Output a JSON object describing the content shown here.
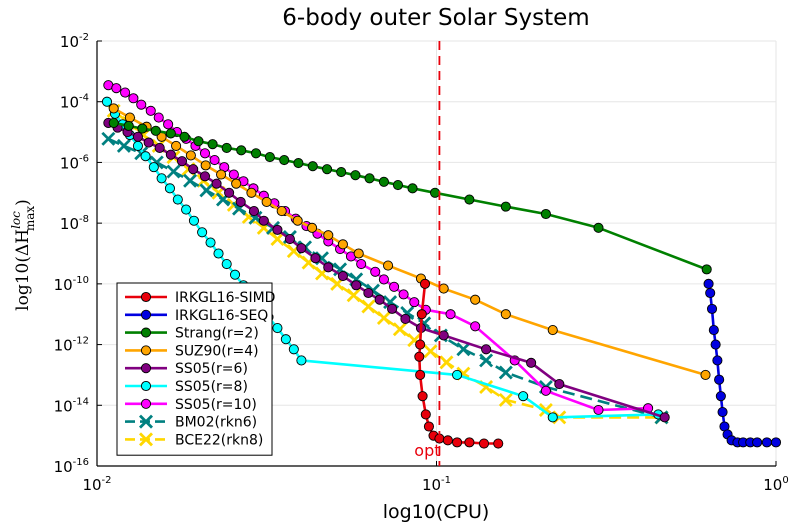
{
  "chart_data": {
    "type": "line",
    "title": "6-body outer Solar System",
    "xlabel": "log10(CPU)",
    "ylabel": "log10(ΔH_max^loc)",
    "xscale": "log",
    "yscale": "log",
    "xlim": [
      0.01,
      1
    ],
    "ylim": [
      1e-16,
      0.01
    ],
    "grid": true,
    "legend_position": "bottom-left",
    "x_ticks": [
      {
        "base": "10",
        "exp": "-2",
        "value": 0.01
      },
      {
        "base": "10",
        "exp": "-1",
        "value": 0.1
      },
      {
        "base": "10",
        "exp": "0",
        "value": 1
      }
    ],
    "y_ticks": [
      {
        "base": "10",
        "exp": "-16",
        "value": 1e-16
      },
      {
        "base": "10",
        "exp": "-14",
        "value": 1e-14
      },
      {
        "base": "10",
        "exp": "-12",
        "value": 1e-12
      },
      {
        "base": "10",
        "exp": "-10",
        "value": 1e-10
      },
      {
        "base": "10",
        "exp": "-8",
        "value": 1e-08
      },
      {
        "base": "10",
        "exp": "-6",
        "value": 1e-06
      },
      {
        "base": "10",
        "exp": "-4",
        "value": 0.0001
      },
      {
        "base": "10",
        "exp": "-2",
        "value": 0.01
      }
    ],
    "reference_line": {
      "x": 0.102,
      "label": "opt",
      "color": "#e8000b",
      "style": "dashed"
    },
    "series": [
      {
        "name": "IRKGL16-SIMD",
        "color": "#e8000b",
        "marker": "circle",
        "dashed": false,
        "points": [
          [
            0.0925,
            1e-10
          ],
          [
            0.0905,
            1e-11
          ],
          [
            0.0895,
            1e-12
          ],
          [
            0.089,
            4e-13
          ],
          [
            0.0895,
            1e-13
          ],
          [
            0.091,
            2e-14
          ],
          [
            0.093,
            5e-15
          ],
          [
            0.095,
            2e-15
          ],
          [
            0.098,
            1e-15
          ],
          [
            0.102,
            8e-16
          ],
          [
            0.108,
            7e-16
          ],
          [
            0.115,
            6e-16
          ],
          [
            0.125,
            6e-16
          ],
          [
            0.138,
            5.5e-16
          ],
          [
            0.152,
            5.5e-16
          ]
        ]
      },
      {
        "name": "IRKGL16-SEQ",
        "color": "#0000e0",
        "marker": "circle",
        "dashed": false,
        "points": [
          [
            0.633,
            1e-10
          ],
          [
            0.64,
            5e-11
          ],
          [
            0.648,
            1.5e-11
          ],
          [
            0.656,
            3e-12
          ],
          [
            0.664,
            1e-12
          ],
          [
            0.672,
            3e-13
          ],
          [
            0.68,
            7e-14
          ],
          [
            0.688,
            2e-14
          ],
          [
            0.696,
            6e-15
          ],
          [
            0.705,
            2e-15
          ],
          [
            0.72,
            1.1e-15
          ],
          [
            0.74,
            7e-16
          ],
          [
            0.77,
            6e-16
          ],
          [
            0.8,
            6e-16
          ],
          [
            0.84,
            6e-16
          ],
          [
            0.88,
            6e-16
          ],
          [
            0.94,
            6e-16
          ],
          [
            1.0,
            6e-16
          ]
        ]
      },
      {
        "name": "Strang(r=2)",
        "color": "#008000",
        "marker": "circle",
        "dashed": false,
        "points": [
          [
            0.0112,
            2e-05
          ],
          [
            0.0124,
            1.6e-05
          ],
          [
            0.0136,
            1.3e-05
          ],
          [
            0.0149,
            1.1e-05
          ],
          [
            0.0165,
            9e-06
          ],
          [
            0.0181,
            7e-06
          ],
          [
            0.0199,
            5e-06
          ],
          [
            0.0219,
            4e-06
          ],
          [
            0.0241,
            3e-06
          ],
          [
            0.0266,
            2.5e-06
          ],
          [
            0.0294,
            2e-06
          ],
          [
            0.0323,
            1.5e-06
          ],
          [
            0.0356,
            1.2e-06
          ],
          [
            0.0392,
            9.5e-07
          ],
          [
            0.0432,
            7.5e-07
          ],
          [
            0.0476,
            6e-07
          ],
          [
            0.0524,
            4.8e-07
          ],
          [
            0.0577,
            3.8e-07
          ],
          [
            0.0635,
            3e-07
          ],
          [
            0.07,
            2.3e-07
          ],
          [
            0.077,
            1.8e-07
          ],
          [
            0.085,
            1.4e-07
          ],
          [
            0.099,
            1e-07
          ],
          [
            0.125,
            6e-08
          ],
          [
            0.16,
            3.5e-08
          ],
          [
            0.21,
            2e-08
          ],
          [
            0.3,
            7e-09
          ],
          [
            0.625,
            3e-10
          ]
        ]
      },
      {
        "name": "SUZ90(r=4)",
        "color": "#ffa500",
        "marker": "circle",
        "dashed": false,
        "points": [
          [
            0.0112,
            6e-05
          ],
          [
            0.0125,
            3e-05
          ],
          [
            0.014,
            1.5e-05
          ],
          [
            0.0155,
            7e-06
          ],
          [
            0.0171,
            3.5e-06
          ],
          [
            0.0189,
            1.7e-06
          ],
          [
            0.0209,
            8e-07
          ],
          [
            0.0232,
            4e-07
          ],
          [
            0.0257,
            2e-07
          ],
          [
            0.0285,
            1e-07
          ],
          [
            0.0316,
            5e-08
          ],
          [
            0.035,
            2.5e-08
          ],
          [
            0.039,
            1.2e-08
          ],
          [
            0.043,
            7e-09
          ],
          [
            0.048,
            4e-09
          ],
          [
            0.053,
            2e-09
          ],
          [
            0.059,
            1e-09
          ],
          [
            0.072,
            4e-10
          ],
          [
            0.09,
            1.5e-10
          ],
          [
            0.105,
            7e-11
          ],
          [
            0.13,
            3e-11
          ],
          [
            0.16,
            1e-11
          ],
          [
            0.22,
            3e-12
          ],
          [
            0.62,
            1e-13
          ]
        ]
      },
      {
        "name": "SS05(r=6)",
        "color": "#800080",
        "marker": "circle",
        "dashed": false,
        "points": [
          [
            0.0108,
            2e-05
          ],
          [
            0.0115,
            1.4e-05
          ],
          [
            0.0123,
            1e-05
          ],
          [
            0.0132,
            7e-06
          ],
          [
            0.0142,
            4.5e-06
          ],
          [
            0.0153,
            3e-06
          ],
          [
            0.0165,
            1.8e-06
          ],
          [
            0.0178,
            1.1e-06
          ],
          [
            0.0192,
            6e-07
          ],
          [
            0.0208,
            3.5e-07
          ],
          [
            0.0225,
            2e-07
          ],
          [
            0.0245,
            1e-07
          ],
          [
            0.0265,
            5e-08
          ],
          [
            0.029,
            2.5e-08
          ],
          [
            0.031,
            1.2e-08
          ],
          [
            0.034,
            6e-09
          ],
          [
            0.037,
            3e-09
          ],
          [
            0.04,
            1.5e-09
          ],
          [
            0.044,
            7e-10
          ],
          [
            0.048,
            3.5e-10
          ],
          [
            0.053,
            1.8e-10
          ],
          [
            0.058,
            9e-11
          ],
          [
            0.063,
            5e-11
          ],
          [
            0.068,
            3e-11
          ],
          [
            0.074,
            1.5e-11
          ],
          [
            0.081,
            7e-12
          ],
          [
            0.09,
            3.5e-12
          ],
          [
            0.105,
            2e-12
          ],
          [
            0.14,
            7e-13
          ],
          [
            0.19,
            2.5e-13
          ],
          [
            0.23,
            5e-14
          ],
          [
            0.47,
            4e-15
          ]
        ]
      },
      {
        "name": "SS05(r=8)",
        "color": "#00ffff",
        "marker": "circle",
        "dashed": false,
        "points": [
          [
            0.0107,
            0.0001
          ],
          [
            0.0113,
            4e-05
          ],
          [
            0.0119,
            1.8e-05
          ],
          [
            0.0125,
            8e-06
          ],
          [
            0.0132,
            3.5e-06
          ],
          [
            0.0139,
            1.6e-06
          ],
          [
            0.0147,
            7e-07
          ],
          [
            0.0155,
            3e-07
          ],
          [
            0.0164,
            1.4e-07
          ],
          [
            0.0173,
            6e-08
          ],
          [
            0.0183,
            2.8e-08
          ],
          [
            0.0193,
            1.2e-08
          ],
          [
            0.0204,
            5e-09
          ],
          [
            0.0216,
            2.3e-09
          ],
          [
            0.0228,
            1e-09
          ],
          [
            0.0241,
            4.5e-10
          ],
          [
            0.0255,
            2e-10
          ],
          [
            0.027,
            9e-11
          ],
          [
            0.0286,
            4e-11
          ],
          [
            0.0303,
            1.8e-11
          ],
          [
            0.032,
            8e-12
          ],
          [
            0.034,
            3.5e-12
          ],
          [
            0.036,
            1.5e-12
          ],
          [
            0.038,
            7e-13
          ],
          [
            0.04,
            3e-13
          ],
          [
            0.115,
            1e-13
          ],
          [
            0.18,
            2e-14
          ],
          [
            0.22,
            4e-15
          ],
          [
            0.45,
            5e-15
          ]
        ]
      },
      {
        "name": "SS05(r=10)",
        "color": "#ff00ff",
        "marker": "circle",
        "dashed": false,
        "points": [
          [
            0.0108,
            0.00035
          ],
          [
            0.0114,
            0.00028
          ],
          [
            0.0121,
            0.0002
          ],
          [
            0.0128,
            0.00013
          ],
          [
            0.0135,
            8e-05
          ],
          [
            0.0144,
            5e-05
          ],
          [
            0.0152,
            3e-05
          ],
          [
            0.0162,
            1.8e-05
          ],
          [
            0.0172,
            1e-05
          ],
          [
            0.0183,
            6e-06
          ],
          [
            0.0195,
            3.5e-06
          ],
          [
            0.0208,
            2e-06
          ],
          [
            0.0222,
            1.2e-06
          ],
          [
            0.0237,
            7e-07
          ],
          [
            0.0253,
            4e-07
          ],
          [
            0.027,
            2.4e-07
          ],
          [
            0.0289,
            1.4e-07
          ],
          [
            0.031,
            8e-08
          ],
          [
            0.0333,
            4.5e-08
          ],
          [
            0.0358,
            2.5e-08
          ],
          [
            0.0385,
            1.4e-08
          ],
          [
            0.0414,
            8e-09
          ],
          [
            0.0446,
            4.5e-09
          ],
          [
            0.048,
            2.5e-09
          ],
          [
            0.052,
            1.4e-09
          ],
          [
            0.056,
            8e-10
          ],
          [
            0.06,
            4.5e-10
          ],
          [
            0.066,
            2.5e-10
          ],
          [
            0.07,
            1.4e-10
          ],
          [
            0.075,
            8e-11
          ],
          [
            0.08,
            4.5e-11
          ],
          [
            0.086,
            2.5e-11
          ],
          [
            0.093,
            1.4e-11
          ],
          [
            0.11,
            1e-11
          ],
          [
            0.13,
            4e-12
          ],
          [
            0.17,
            3e-13
          ],
          [
            0.21,
            3e-14
          ],
          [
            0.3,
            7e-15
          ],
          [
            0.42,
            8e-15
          ]
        ]
      },
      {
        "name": "BM02(rkn6)",
        "color": "#008080",
        "marker": "x",
        "dashed": true,
        "points": [
          [
            0.0108,
            6e-06
          ],
          [
            0.012,
            3.5e-06
          ],
          [
            0.0135,
            2e-06
          ],
          [
            0.015,
            1e-06
          ],
          [
            0.0168,
            5e-07
          ],
          [
            0.0188,
            2.5e-07
          ],
          [
            0.021,
            1.2e-07
          ],
          [
            0.0235,
            6e-08
          ],
          [
            0.0262,
            3e-08
          ],
          [
            0.0293,
            1.5e-08
          ],
          [
            0.033,
            7e-09
          ],
          [
            0.037,
            3.5e-09
          ],
          [
            0.041,
            1.6e-09
          ],
          [
            0.046,
            7e-10
          ],
          [
            0.052,
            3e-10
          ],
          [
            0.058,
            1.4e-10
          ],
          [
            0.065,
            6e-11
          ],
          [
            0.073,
            2.5e-11
          ],
          [
            0.082,
            1.1e-11
          ],
          [
            0.092,
            5e-12
          ],
          [
            0.103,
            2e-12
          ],
          [
            0.12,
            7e-13
          ],
          [
            0.14,
            3e-13
          ],
          [
            0.16,
            1.2e-13
          ],
          [
            0.21,
            4e-14
          ],
          [
            0.46,
            4e-15
          ]
        ]
      },
      {
        "name": "BCE22(rkn8)",
        "color": "#ffd700",
        "marker": "x",
        "dashed": true,
        "points": [
          [
            0.0112,
            5e-05
          ],
          [
            0.0124,
            2e-05
          ],
          [
            0.0137,
            8e-06
          ],
          [
            0.0152,
            3.5e-06
          ],
          [
            0.0168,
            1.5e-06
          ],
          [
            0.0186,
            6e-07
          ],
          [
            0.0206,
            2.5e-07
          ],
          [
            0.0228,
            1e-07
          ],
          [
            0.0253,
            4e-08
          ],
          [
            0.028,
            1.6e-08
          ],
          [
            0.031,
            7e-09
          ],
          [
            0.034,
            3e-09
          ],
          [
            0.038,
            1.2e-09
          ],
          [
            0.042,
            5e-10
          ],
          [
            0.046,
            2.2e-10
          ],
          [
            0.051,
            1e-10
          ],
          [
            0.057,
            4.2e-11
          ],
          [
            0.063,
            1.8e-11
          ],
          [
            0.07,
            7.5e-12
          ],
          [
            0.078,
            3.2e-12
          ],
          [
            0.086,
            1.4e-12
          ],
          [
            0.096,
            6e-13
          ],
          [
            0.107,
            2.6e-13
          ],
          [
            0.12,
            1.1e-13
          ],
          [
            0.14,
            4e-14
          ],
          [
            0.16,
            1.5e-14
          ],
          [
            0.21,
            7e-15
          ],
          [
            0.23,
            4e-15
          ],
          [
            0.46,
            4e-15
          ]
        ]
      }
    ]
  }
}
